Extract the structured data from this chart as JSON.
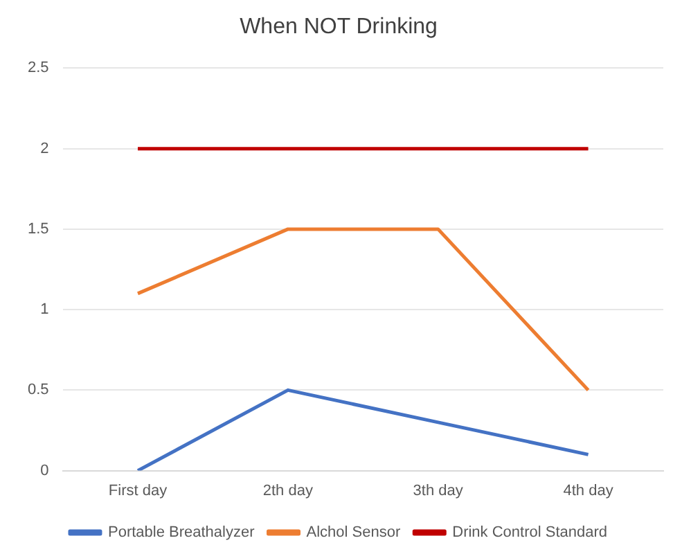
{
  "chart_data": {
    "type": "line",
    "title": "When NOT Drinking",
    "categories": [
      "First day",
      "2th day",
      "3th day",
      "4th day"
    ],
    "series": [
      {
        "name": "Portable Breathalyzer",
        "color": "#4472c4",
        "values": [
          0,
          0.5,
          0.3,
          0.1
        ]
      },
      {
        "name": "Alchol Sensor",
        "color": "#ed7d31",
        "values": [
          1.1,
          1.5,
          1.5,
          0.5
        ]
      },
      {
        "name": "Drink Control Standard",
        "color": "#c00000",
        "values": [
          2,
          2,
          2,
          2
        ]
      }
    ],
    "ylim": [
      0,
      2.5
    ],
    "yticks": [
      0,
      0.5,
      1,
      1.5,
      2,
      2.5
    ],
    "grid": "y",
    "legend": "bottom",
    "marker": "none",
    "line_style": "solid"
  }
}
